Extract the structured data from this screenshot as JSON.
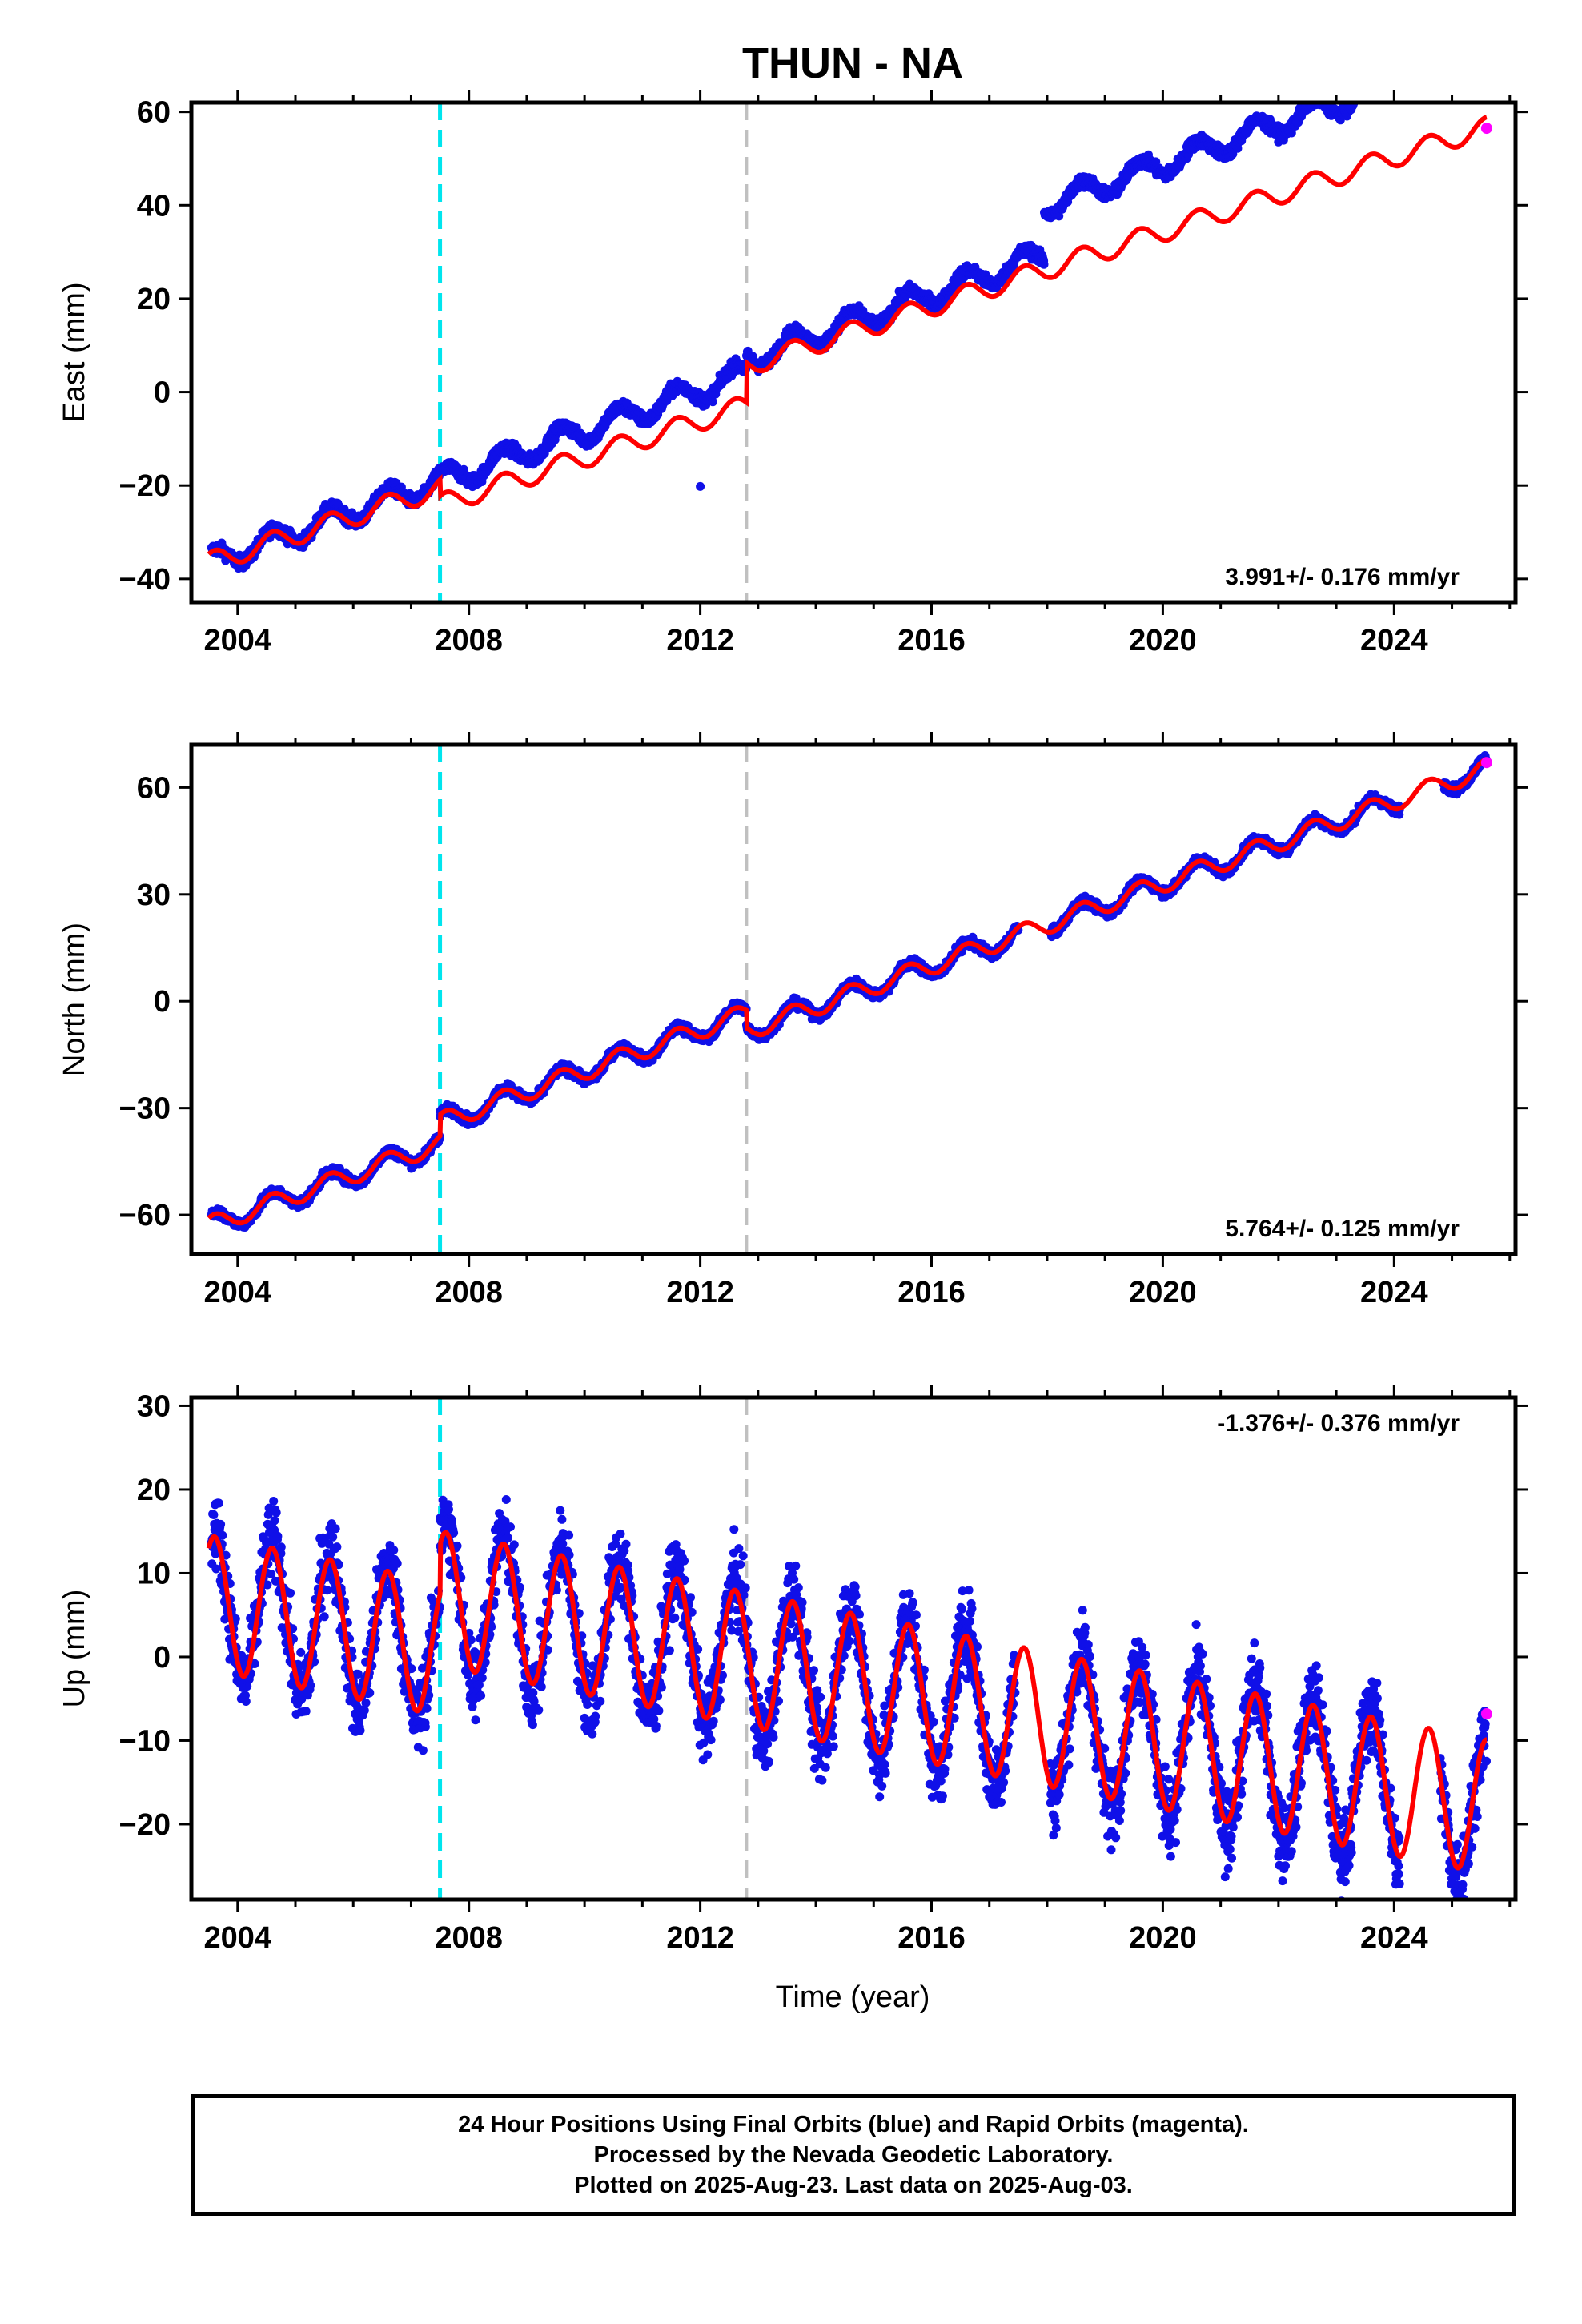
{
  "title": "THUN - NA",
  "x_axis_label": "Time (year)",
  "caption": {
    "line1": "24 Hour Positions Using Final Orbits (blue) and Rapid Orbits (magenta).",
    "line2": "Processed by the Nevada Geodetic Laboratory.",
    "line3": "Plotted on 2025-Aug-23. Last data on 2025-Aug-03."
  },
  "colors": {
    "final_orbits": "#1010e8",
    "rapid_orbits": "#ff00ff",
    "model": "#ff0000",
    "event_cyan": "#00e5ee",
    "event_gray": "#c0c0c0"
  },
  "chart_data": [
    {
      "type": "scatter",
      "panel": "east",
      "ylabel": "East (mm)",
      "xlim": [
        2003.2,
        2026.1
      ],
      "ylim": [
        -45,
        62
      ],
      "xticks": [
        2004,
        2008,
        2012,
        2016,
        2020,
        2024
      ],
      "yticks": [
        -40,
        -20,
        0,
        20,
        40,
        60
      ],
      "rate_text": "3.991+/- 0.176 mm/yr",
      "event_lines": [
        {
          "x": 2007.5,
          "style": "cyan-dashed"
        },
        {
          "x": 2012.8,
          "style": "gray-dashed"
        }
      ],
      "data_start": 2003.55,
      "data_end": 2025.6,
      "gaps": [
        [
          2024.1,
          2024.85
        ]
      ],
      "model": {
        "anchor_x": 2003.5,
        "anchor_y": -36.5,
        "rate": 3.991,
        "seasonal_amp": 2.2,
        "offsets": [
          {
            "x": 2007.5,
            "dy": -3.5
          },
          {
            "x": 2012.8,
            "dy": 8.5
          }
        ]
      },
      "observed_rate": 4.35,
      "observed_offsets": [
        {
          "x": 2012.8,
          "dy": 3.0
        },
        {
          "x": 2017.95,
          "dy": 10.5
        }
      ],
      "scatter_noise": 1.3,
      "outliers": [
        {
          "x": 2012.0,
          "y": -20.2
        }
      ],
      "rapid_points": [
        {
          "x": 2025.6,
          "y": 56.5
        }
      ]
    },
    {
      "type": "scatter",
      "panel": "north",
      "ylabel": "North (mm)",
      "xlim": [
        2003.2,
        2026.1
      ],
      "ylim": [
        -71,
        72
      ],
      "xticks": [
        2004,
        2008,
        2012,
        2016,
        2020,
        2024
      ],
      "yticks": [
        -60,
        -30,
        0,
        30,
        60
      ],
      "rate_text": "5.764+/- 0.125 mm/yr",
      "event_lines": [
        {
          "x": 2007.5,
          "style": "cyan-dashed"
        },
        {
          "x": 2012.8,
          "style": "gray-dashed"
        }
      ],
      "data_start": 2003.55,
      "data_end": 2025.6,
      "gaps": [
        [
          2017.5,
          2018.05
        ],
        [
          2024.1,
          2024.85
        ]
      ],
      "model": {
        "anchor_x": 2003.5,
        "anchor_y": -63.0,
        "rate": 5.764,
        "seasonal_amp": 2.6,
        "offsets": [
          {
            "x": 2007.5,
            "dy": 6.0
          },
          {
            "x": 2012.8,
            "dy": -5.0
          }
        ]
      },
      "observed_rate": 5.764,
      "observed_offsets": [],
      "scatter_noise": 1.3,
      "outliers": [],
      "rapid_points": [
        {
          "x": 2025.6,
          "y": 67.0
        }
      ]
    },
    {
      "type": "scatter",
      "panel": "up",
      "ylabel": "Up (mm)",
      "xlim": [
        2003.2,
        2026.1
      ],
      "ylim": [
        -29,
        31
      ],
      "xticks": [
        2004,
        2008,
        2012,
        2016,
        2020,
        2024
      ],
      "yticks": [
        -20,
        -10,
        0,
        10,
        20,
        30
      ],
      "rate_text": "-1.376+/- 0.376 mm/yr",
      "event_lines": [
        {
          "x": 2007.5,
          "style": "cyan-dashed"
        },
        {
          "x": 2012.8,
          "style": "gray-dashed"
        }
      ],
      "data_start": 2003.55,
      "data_end": 2025.6,
      "gaps": [
        [
          2017.45,
          2018.05
        ],
        [
          2024.1,
          2024.8
        ]
      ],
      "model": {
        "anchor_x": 2003.5,
        "anchor_y": 6.5,
        "rate": -1.376,
        "seasonal_amp": 8.0,
        "offsets": [
          {
            "x": 2007.5,
            "dy": 6.0
          }
        ]
      },
      "observed_rate": -1.376,
      "observed_offsets": [],
      "scatter_noise": 4.5,
      "outliers": [],
      "rapid_points": [
        {
          "x": 2025.6,
          "y": -6.8
        }
      ]
    }
  ]
}
